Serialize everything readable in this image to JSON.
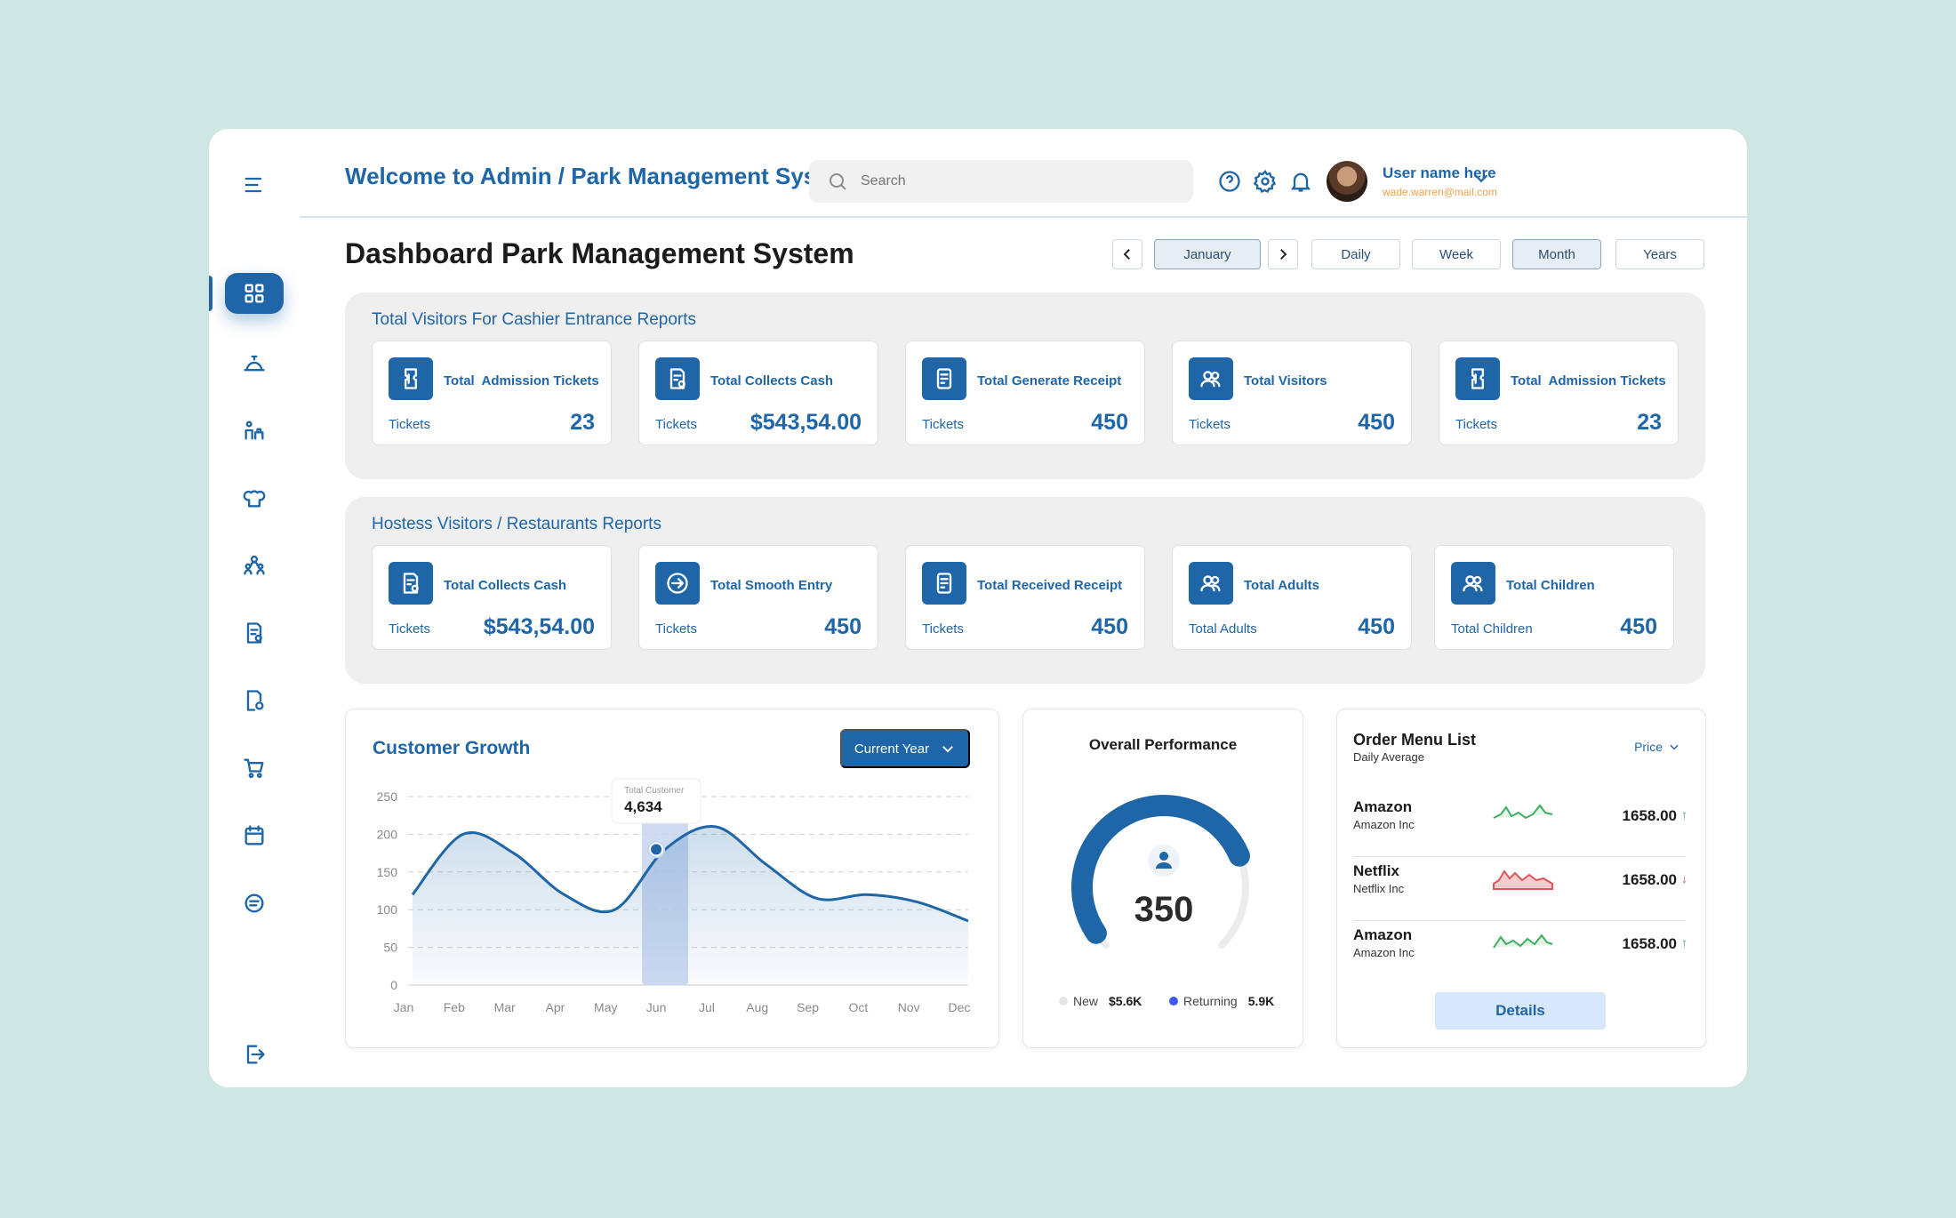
{
  "header": {
    "title": "Welcome to Admin / Park Management System",
    "search_placeholder": "Search",
    "user_name": "User name here",
    "user_email": "wade.warren@mail.com"
  },
  "page_title": "Dashboard Park Management System",
  "filters": {
    "month": "January",
    "options": [
      "Daily",
      "Week",
      "Month",
      "Years"
    ],
    "selected": "Month"
  },
  "cashier": {
    "title": "Total Visitors For Cashier Entrance Reports",
    "cards": [
      {
        "label": "Total  Admission Tickets",
        "sub": "Tickets",
        "value": "23",
        "icon": "ticket-icon"
      },
      {
        "label": "Total Collects Cash",
        "sub": "Tickets",
        "value": "$543,54.00",
        "icon": "cash-receipt-icon"
      },
      {
        "label": "Total Generate Receipt",
        "sub": "Tickets",
        "value": "450",
        "icon": "receipt-icon"
      },
      {
        "label": "Total Visitors",
        "sub": "Tickets",
        "value": "450",
        "icon": "users-icon"
      },
      {
        "label": "Total  Admission Tickets",
        "sub": "Tickets",
        "value": "23",
        "icon": "ticket-icon"
      }
    ]
  },
  "hostess": {
    "title": "Hostess Visitors / Restaurants Reports",
    "cards": [
      {
        "label": "Total Collects Cash",
        "sub": "Tickets",
        "value": "$543,54.00",
        "icon": "cash-receipt-icon"
      },
      {
        "label": "Total Smooth Entry",
        "sub": "Tickets",
        "value": "450",
        "icon": "entry-icon"
      },
      {
        "label": "Total Received Receipt",
        "sub": "Tickets",
        "value": "450",
        "icon": "receipt-icon"
      },
      {
        "label": "Total Adults",
        "sub": "Total Adults",
        "value": "450",
        "icon": "users-icon"
      },
      {
        "label": "Total Children",
        "sub": "Total Children",
        "value": "450",
        "icon": "users-icon"
      }
    ]
  },
  "growth": {
    "title": "Customer Growth",
    "period_button": "Current Year",
    "tooltip_label": "Total Customer",
    "tooltip_value": "4,634"
  },
  "chart_data": {
    "type": "area",
    "categories": [
      "Jan",
      "Feb",
      "Mar",
      "Apr",
      "May",
      "Jun",
      "Jul",
      "Aug",
      "Sep",
      "Oct",
      "Nov",
      "Dec"
    ],
    "x": [
      0,
      1,
      2,
      3,
      4,
      5,
      6,
      7,
      8,
      9,
      10,
      11
    ],
    "values": [
      120,
      200,
      175,
      120,
      100,
      180,
      210,
      160,
      115,
      120,
      110,
      85
    ],
    "y_ticks": [
      0,
      50,
      100,
      150,
      200,
      250
    ],
    "ylim": [
      0,
      250
    ],
    "highlight_category": "Jun",
    "highlight_value": 180,
    "grid": true,
    "color": "#1e66a8"
  },
  "performance": {
    "title": "Overall Performance",
    "value": "350",
    "progress": 0.75,
    "legend": [
      {
        "label": "New",
        "value": "$5.6K",
        "color": "#e6e6e6"
      },
      {
        "label": "Returning",
        "value": "5.9K",
        "color": "#3d5af1"
      }
    ]
  },
  "orders": {
    "title": "Order Menu List",
    "subtitle": "Daily Average",
    "sort_label": "Price",
    "items": [
      {
        "name": "Amazon",
        "company": "Amazon Inc",
        "price": "1658.00",
        "trend": "up",
        "arrow": "↑",
        "color": "#3fae5e"
      },
      {
        "name": "Netflix",
        "company": "Netflix Inc",
        "price": "1658.00",
        "trend": "down",
        "arrow": "↓",
        "color": "#e0555b"
      },
      {
        "name": "Amazon",
        "company": "Amazon Inc",
        "price": "1658.00",
        "trend": "up",
        "arrow": "↑",
        "color": "#3fae5e"
      }
    ],
    "details_button": "Details"
  }
}
